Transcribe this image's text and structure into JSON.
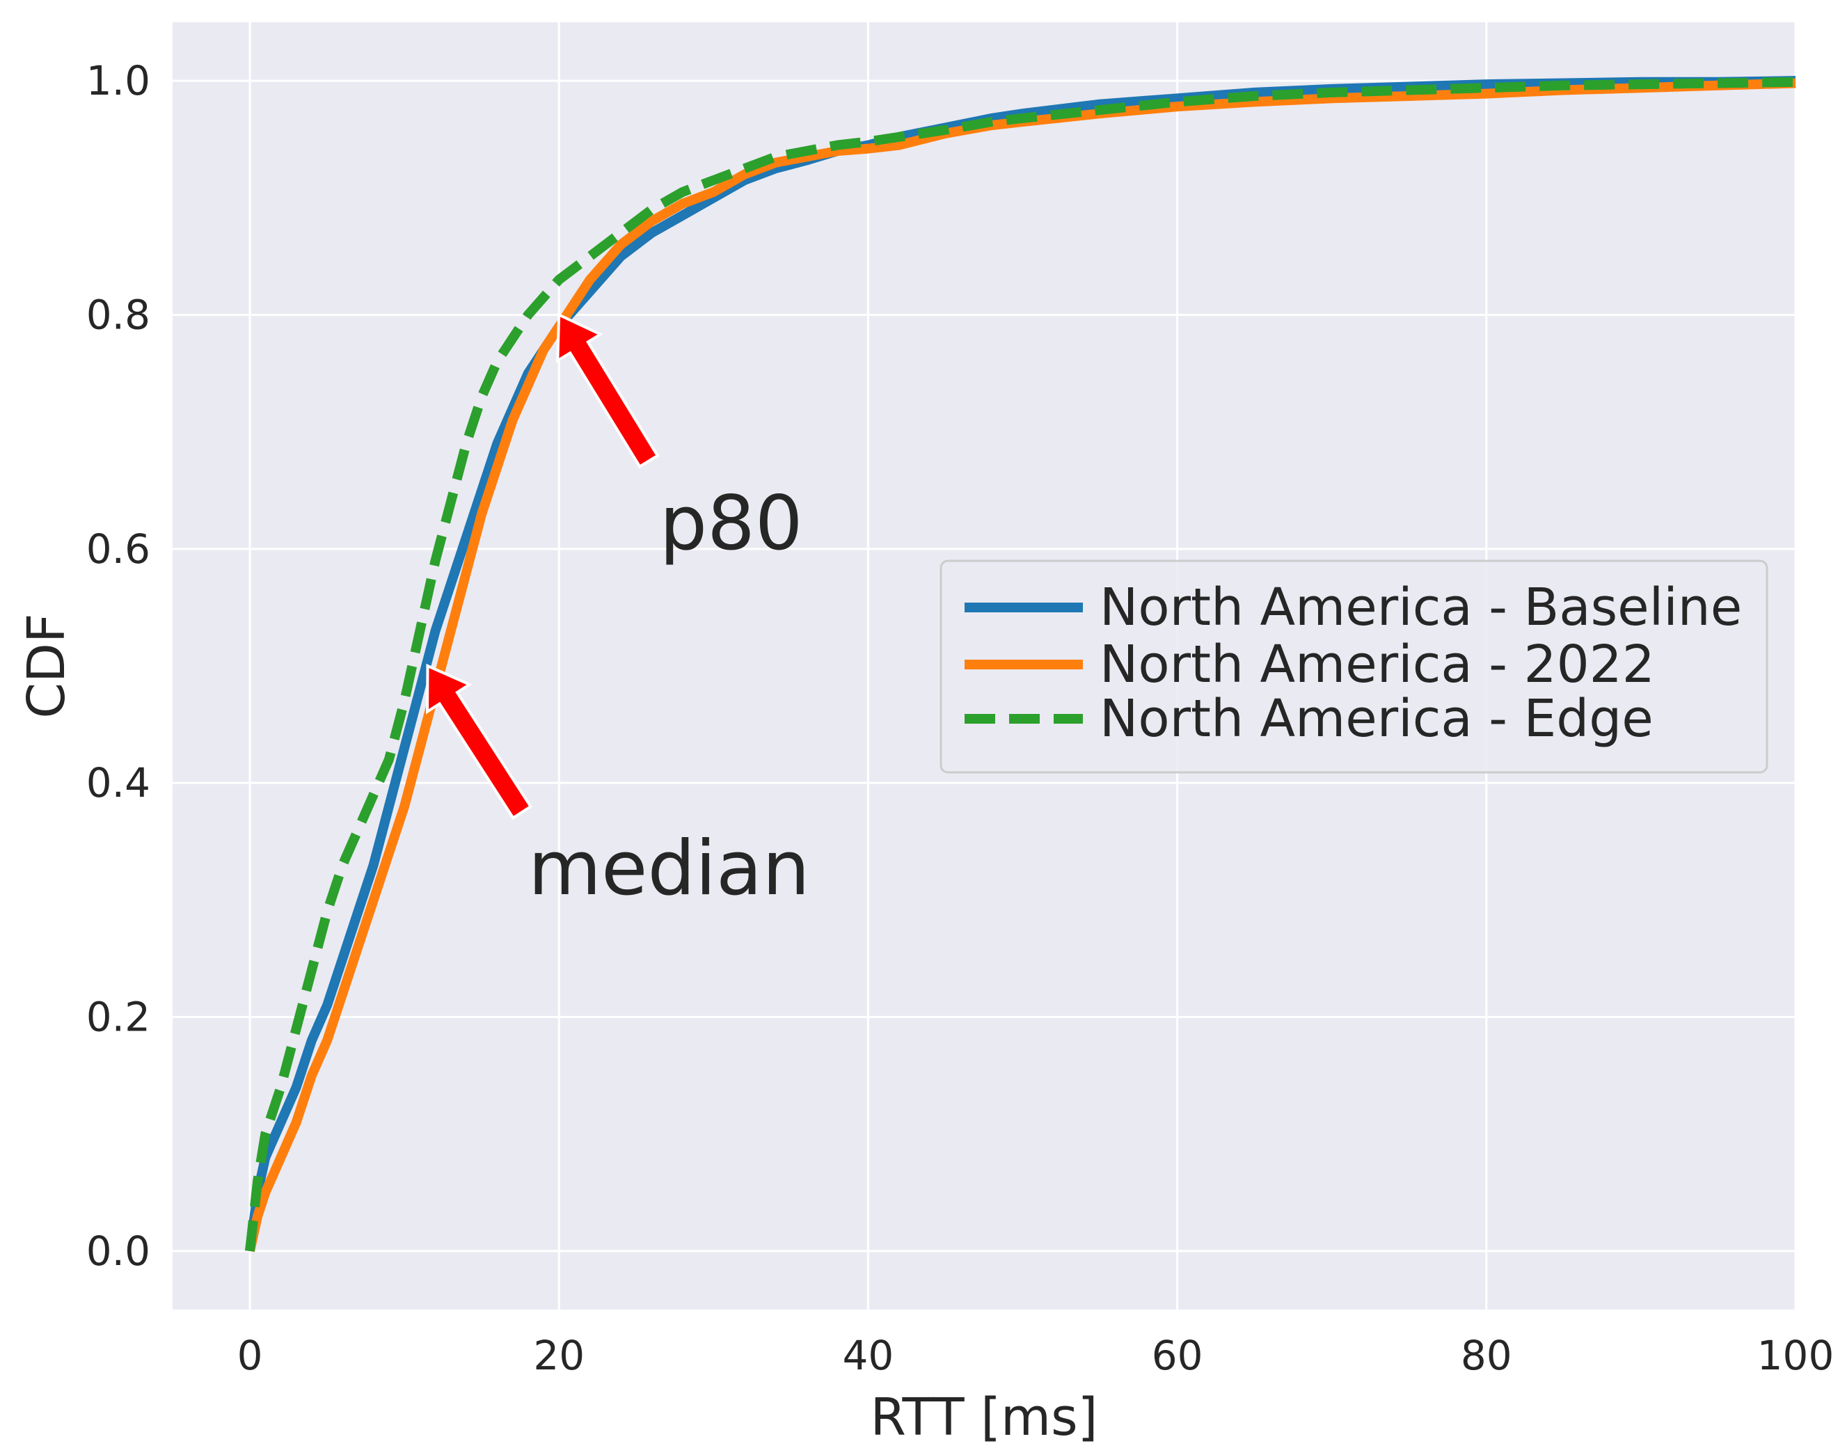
{
  "chart_data": {
    "type": "line",
    "title": "",
    "xlabel": "RTT [ms]",
    "ylabel": "CDF",
    "xlim": [
      -5,
      100
    ],
    "ylim": [
      -0.05,
      1.05
    ],
    "xticks": [
      0,
      20,
      40,
      60,
      80,
      100
    ],
    "xtick_labels": [
      "0",
      "20",
      "40",
      "60",
      "80",
      "100"
    ],
    "yticks": [
      0.0,
      0.2,
      0.4,
      0.6,
      0.8,
      1.0
    ],
    "ytick_labels": [
      "0.0",
      "0.2",
      "0.4",
      "0.6",
      "0.8",
      "1.0"
    ],
    "grid": true,
    "background": "#eaeaf2",
    "legend_position": "center-right",
    "series": [
      {
        "name": "North America - Baseline",
        "color": "#1f77b4",
        "style": "solid",
        "x": [
          0,
          0.5,
          1,
          2,
          3,
          4,
          5,
          6,
          7,
          8,
          9,
          10,
          11,
          12,
          13,
          14,
          15,
          16,
          17,
          18,
          19,
          20,
          22,
          24,
          26,
          28,
          30,
          32,
          34,
          36,
          38,
          40,
          42,
          45,
          48,
          50,
          55,
          60,
          65,
          70,
          75,
          80,
          85,
          90,
          95,
          100
        ],
        "y": [
          0,
          0.05,
          0.08,
          0.11,
          0.14,
          0.18,
          0.21,
          0.25,
          0.29,
          0.33,
          0.38,
          0.43,
          0.48,
          0.53,
          0.57,
          0.61,
          0.65,
          0.69,
          0.72,
          0.75,
          0.77,
          0.79,
          0.82,
          0.85,
          0.87,
          0.885,
          0.9,
          0.915,
          0.925,
          0.932,
          0.94,
          0.945,
          0.952,
          0.96,
          0.968,
          0.972,
          0.98,
          0.985,
          0.99,
          0.993,
          0.995,
          0.997,
          0.998,
          0.999,
          0.999,
          1.0
        ]
      },
      {
        "name": "North America - 2022",
        "color": "#ff7f0e",
        "style": "solid",
        "x": [
          0,
          0.5,
          1,
          2,
          3,
          4,
          5,
          6,
          7,
          8,
          9,
          10,
          11,
          12,
          13,
          14,
          15,
          16,
          17,
          18,
          19,
          20,
          22,
          24,
          26,
          28,
          30,
          32,
          34,
          36,
          38,
          40,
          42,
          45,
          48,
          50,
          55,
          60,
          65,
          70,
          75,
          80,
          85,
          90,
          95,
          100
        ],
        "y": [
          0,
          0.03,
          0.05,
          0.08,
          0.11,
          0.15,
          0.18,
          0.22,
          0.26,
          0.3,
          0.34,
          0.38,
          0.43,
          0.48,
          0.53,
          0.58,
          0.63,
          0.67,
          0.71,
          0.74,
          0.77,
          0.79,
          0.83,
          0.86,
          0.88,
          0.895,
          0.905,
          0.92,
          0.93,
          0.935,
          0.94,
          0.942,
          0.945,
          0.955,
          0.962,
          0.965,
          0.972,
          0.978,
          0.982,
          0.985,
          0.987,
          0.989,
          0.992,
          0.994,
          0.996,
          0.998
        ]
      },
      {
        "name": "North America - Edge",
        "color": "#2ca02c",
        "style": "dashed",
        "x": [
          0,
          0.5,
          1,
          2,
          3,
          4,
          5,
          6,
          7,
          8,
          9,
          10,
          11,
          12,
          13,
          14,
          15,
          16,
          17,
          18,
          19,
          20,
          22,
          24,
          26,
          28,
          30,
          32,
          34,
          36,
          38,
          40,
          42,
          45,
          48,
          50,
          55,
          60,
          65,
          70,
          75,
          80,
          85,
          90,
          95,
          100
        ],
        "y": [
          0,
          0.06,
          0.1,
          0.14,
          0.19,
          0.24,
          0.29,
          0.33,
          0.36,
          0.39,
          0.42,
          0.47,
          0.53,
          0.59,
          0.64,
          0.69,
          0.73,
          0.76,
          0.78,
          0.8,
          0.815,
          0.83,
          0.85,
          0.87,
          0.89,
          0.905,
          0.915,
          0.925,
          0.935,
          0.94,
          0.945,
          0.948,
          0.952,
          0.958,
          0.965,
          0.968,
          0.975,
          0.982,
          0.987,
          0.99,
          0.992,
          0.994,
          0.996,
          0.997,
          0.998,
          0.999
        ]
      }
    ],
    "annotations": [
      {
        "text": "p80",
        "text_x": 26.5,
        "text_y": 0.6,
        "arrow_from_x": 25.8,
        "arrow_from_y": 0.675,
        "arrow_to_x": 20,
        "arrow_to_y": 0.8,
        "arrow_color": "#ff0000"
      },
      {
        "text": "median",
        "text_x": 18,
        "text_y": 0.305,
        "arrow_from_x": 17.6,
        "arrow_from_y": 0.375,
        "arrow_to_x": 11.5,
        "arrow_to_y": 0.5,
        "arrow_color": "#ff0000"
      }
    ]
  }
}
